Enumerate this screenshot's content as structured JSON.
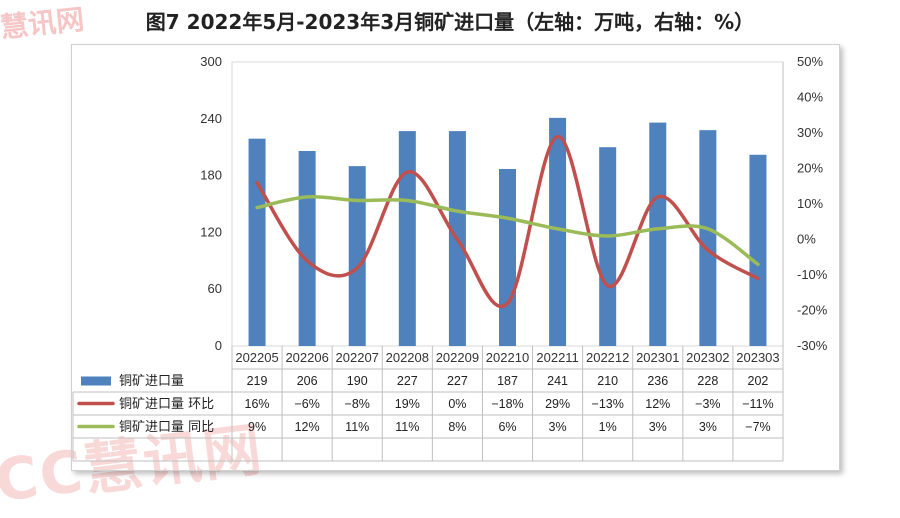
{
  "title": "图7  2022年5月-2023年3月铜矿进口量（左轴：万吨，右轴：%）",
  "watermark": {
    "top": "慧讯网",
    "bottom": "CC慧讯网"
  },
  "chart_data": {
    "type": "bar+line",
    "categories": [
      "202205",
      "202206",
      "202207",
      "202208",
      "202209",
      "202210",
      "202211",
      "202212",
      "202301",
      "202302",
      "202303"
    ],
    "y_left": {
      "ylim": [
        0,
        300
      ],
      "ticks": [
        0,
        60,
        120,
        180,
        240,
        300
      ]
    },
    "y_right": {
      "ylim": [
        -30,
        50
      ],
      "ticks": [
        "-30%",
        "-20%",
        "-10%",
        "0%",
        "10%",
        "20%",
        "30%",
        "40%",
        "50%"
      ]
    },
    "grid": false,
    "legend_position": "data-table-below",
    "series": [
      {
        "name": "铜矿进口量",
        "type": "bar",
        "axis": "left",
        "color": "#4f81bd",
        "values": [
          219,
          206,
          190,
          227,
          227,
          187,
          241,
          210,
          236,
          228,
          202
        ],
        "labels": [
          "219",
          "206",
          "190",
          "227",
          "227",
          "187",
          "241",
          "210",
          "236",
          "228",
          "202"
        ]
      },
      {
        "name": "铜矿进口量 环比",
        "type": "line",
        "axis": "right",
        "color": "#c0504d",
        "values": [
          16,
          -6,
          -8,
          19,
          0,
          -18,
          29,
          -13,
          12,
          -3,
          -11
        ],
        "labels": [
          "16%",
          "−6%",
          "−8%",
          "19%",
          "0%",
          "−18%",
          "29%",
          "−13%",
          "12%",
          "−3%",
          "−11%"
        ]
      },
      {
        "name": "铜矿进口量 同比",
        "type": "line",
        "axis": "right",
        "color": "#9bbb59",
        "values": [
          9,
          12,
          11,
          11,
          8,
          6,
          3,
          1,
          3,
          3,
          -7
        ],
        "labels": [
          "9%",
          "12%",
          "11%",
          "11%",
          "8%",
          "6%",
          "3%",
          "1%",
          "3%",
          "3%",
          "−7%"
        ]
      }
    ]
  }
}
